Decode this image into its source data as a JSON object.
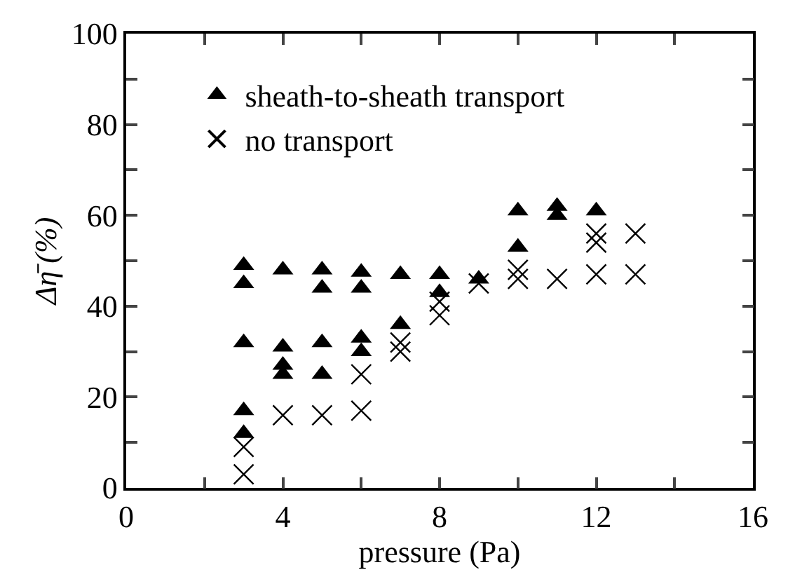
{
  "chart_data": {
    "type": "scatter",
    "xlabel": "pressure (Pa)",
    "ylabel": "Δη̄ (%)",
    "xlim": [
      0,
      16
    ],
    "ylim": [
      0,
      100
    ],
    "xticks": [
      0,
      {
        "value": 2,
        "label": null
      },
      4,
      {
        "value": 6,
        "label": null
      },
      8,
      {
        "value": 10,
        "label": null
      },
      12,
      {
        "value": 14,
        "label": null
      },
      16
    ],
    "yticks": [
      0,
      {
        "value": 10,
        "label": null
      },
      20,
      {
        "value": 30,
        "label": null
      },
      40,
      {
        "value": 50,
        "label": null
      },
      60,
      {
        "value": 70,
        "label": null
      },
      80,
      {
        "value": 90,
        "label": null
      },
      100
    ],
    "grid": false,
    "legend": "top left",
    "series": [
      {
        "name": "sheath-to-sheath transport",
        "color": "#000000",
        "marker": "triangle",
        "x": [
          3,
          3,
          3,
          3,
          3,
          4,
          4,
          4,
          4,
          5,
          5,
          5,
          5,
          6,
          6,
          6,
          6,
          7,
          7,
          8,
          8,
          9,
          10,
          10,
          11,
          11,
          12
        ],
        "values": [
          49,
          45,
          32,
          17,
          12,
          48,
          31,
          27,
          25,
          48,
          44,
          32,
          25,
          47.5,
          44,
          33,
          30,
          47,
          36,
          47,
          43,
          46,
          61,
          53,
          62,
          60,
          61
        ]
      },
      {
        "name": "no transport",
        "color": "#000000",
        "marker": "cross",
        "x": [
          3,
          3,
          4,
          5,
          6,
          6,
          7,
          7,
          8,
          8,
          9,
          10,
          10,
          11,
          12,
          12,
          12,
          13,
          13
        ],
        "values": [
          9,
          3,
          16,
          16,
          25,
          17,
          32,
          30,
          41,
          38,
          45,
          48,
          46,
          46,
          56,
          54,
          47,
          56,
          47
        ]
      }
    ]
  }
}
